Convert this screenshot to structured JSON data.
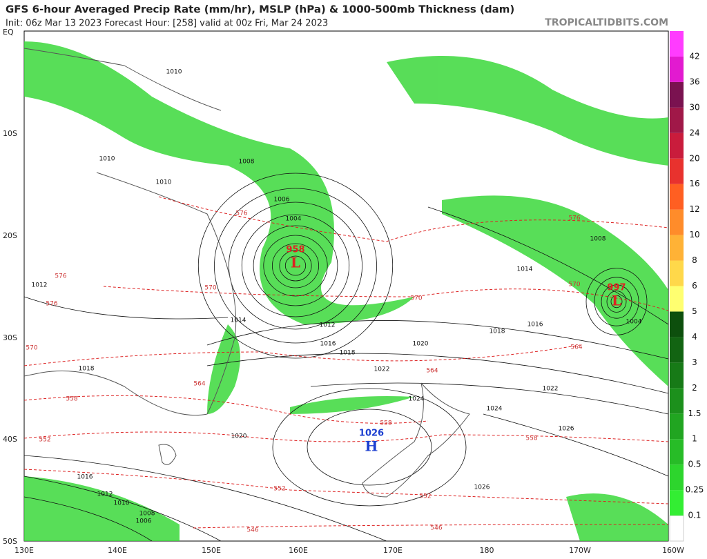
{
  "header": {
    "title": "GFS 6-hour Averaged Precip Rate (mm/hr), MSLP (hPa) & 1000-500mb Thickness (dam)",
    "subtitle": "Init: 06z Mar 13 2023   Forecast Hour: [258]   valid at 00z Fri, Mar 24 2023",
    "source": "TROPICALTIDBITS.COM"
  },
  "map": {
    "lat_labels": [
      "EQ",
      "10S",
      "20S",
      "30S",
      "40S",
      "50S"
    ],
    "lon_labels": [
      "130E",
      "140E",
      "150E",
      "160E",
      "170E",
      "180",
      "170W",
      "160W"
    ],
    "centers": [
      {
        "pressure": "958",
        "letter": "L"
      },
      {
        "pressure": "997",
        "letter": "L"
      },
      {
        "pressure": "1026",
        "letter": "H"
      }
    ],
    "isobar_labels": [
      "1010",
      "1010",
      "1008",
      "1006",
      "1004",
      "1012",
      "1014",
      "1014",
      "1016",
      "1018",
      "1020",
      "1022",
      "1024",
      "1026",
      "1018",
      "1016",
      "1012",
      "1010",
      "1008",
      "1006",
      "1004",
      "1016",
      "1018",
      "1020",
      "1022",
      "1024",
      "1026",
      "1012",
      "1008",
      "1010"
    ],
    "thickness_labels": [
      "576",
      "576",
      "570",
      "570",
      "564",
      "564",
      "558",
      "558",
      "552",
      "552",
      "546",
      "546",
      "576",
      "570",
      "564",
      "558",
      "552",
      "576",
      "570"
    ]
  },
  "colorbar": {
    "levels": [
      {
        "label": "0.1",
        "color": "#33ee33"
      },
      {
        "label": "0.25",
        "color": "#2dd52d"
      },
      {
        "label": "0.5",
        "color": "#27bc27"
      },
      {
        "label": "1",
        "color": "#21a521"
      },
      {
        "label": "1.5",
        "color": "#1c901c"
      },
      {
        "label": "2",
        "color": "#177a17"
      },
      {
        "label": "3",
        "color": "#126412"
      },
      {
        "label": "4",
        "color": "#0d4f0d"
      },
      {
        "label": "5",
        "color": "#ffff70"
      },
      {
        "label": "6",
        "color": "#ffd84a"
      },
      {
        "label": "8",
        "color": "#ffb236"
      },
      {
        "label": "10",
        "color": "#ff8c2a"
      },
      {
        "label": "12",
        "color": "#ff5f22"
      },
      {
        "label": "16",
        "color": "#e8322e"
      },
      {
        "label": "20",
        "color": "#c91c3c"
      },
      {
        "label": "24",
        "color": "#a01848"
      },
      {
        "label": "30",
        "color": "#7a1250"
      },
      {
        "label": "36",
        "color": "#e21ad0"
      },
      {
        "label": "42",
        "color": "#ff3cff"
      }
    ]
  }
}
